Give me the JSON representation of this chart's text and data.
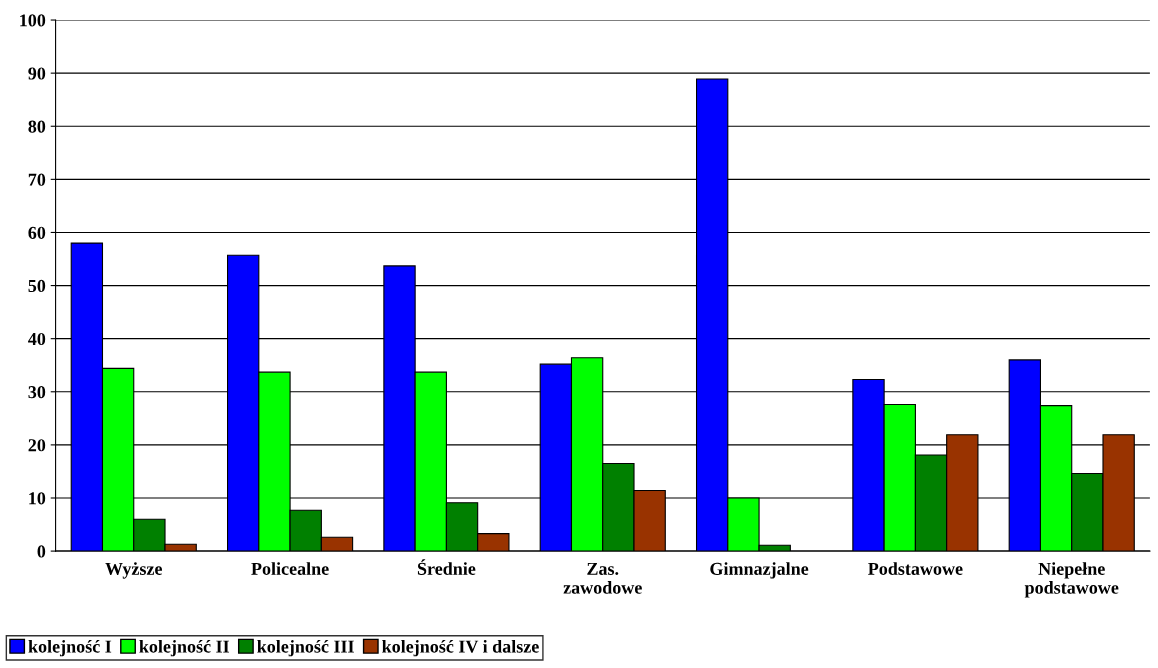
{
  "chart_data": {
    "type": "bar",
    "categories": [
      "Wyższe",
      "Policealne",
      "Średnie",
      "Zas.\nzawodowe",
      "Gimnazjalne",
      "Podstawowe",
      "Niepełne\npodstawowe"
    ],
    "series": [
      {
        "name": "kolejność I",
        "color": "#0000ff",
        "values": [
          58.0,
          55.7,
          53.7,
          35.2,
          88.9,
          32.3,
          36.0
        ]
      },
      {
        "name": "kolejność II",
        "color": "#00ff00",
        "values": [
          34.4,
          33.7,
          33.7,
          36.4,
          10.0,
          27.6,
          27.4
        ]
      },
      {
        "name": "kolejność III",
        "color": "#008000",
        "values": [
          6.0,
          7.7,
          9.1,
          16.5,
          1.1,
          18.1,
          14.6
        ]
      },
      {
        "name": "kolejność IV i dalsze",
        "color": "#993300",
        "values": [
          1.3,
          2.6,
          3.3,
          11.4,
          null,
          21.9,
          21.9
        ]
      }
    ],
    "ylim": [
      0,
      100
    ],
    "yticks": [
      0,
      10,
      20,
      30,
      40,
      50,
      60,
      70,
      80,
      90,
      100
    ],
    "grid": "y",
    "legend": "bottom left"
  }
}
